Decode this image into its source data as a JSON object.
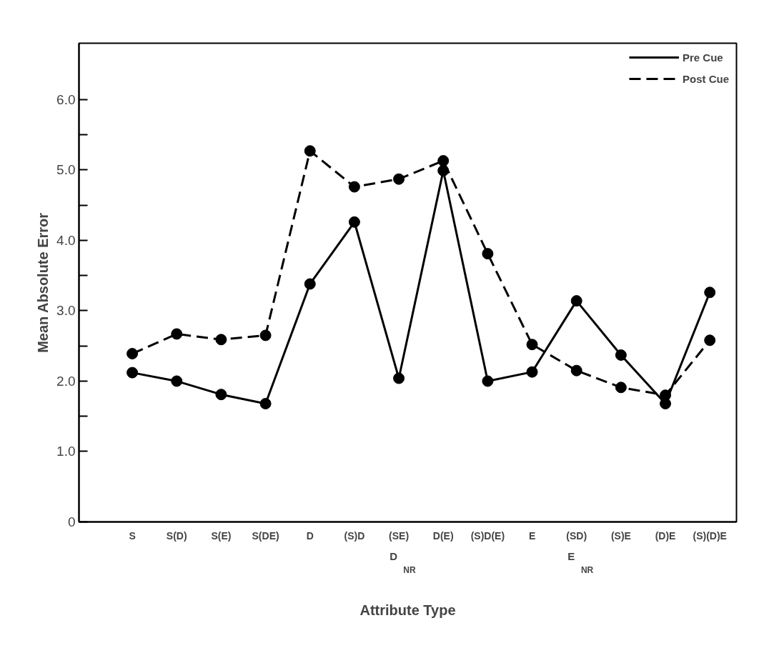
{
  "chart_data": {
    "type": "line",
    "xlabel": "Attribute Type",
    "ylabel": "Mean Absolute Error",
    "categories": [
      "S",
      "S(D)",
      "S(E)",
      "S(DE)",
      "D",
      "(S)D",
      "(SE)",
      "D(E)",
      "(S)D(E)",
      "E",
      "(SD)",
      "(S)E",
      "(D)E",
      "(S)(D)E"
    ],
    "series": [
      {
        "name": "Pre Cue",
        "color": "#000000",
        "line_style": "solid",
        "values": [
          2.12,
          2.0,
          1.81,
          1.68,
          3.38,
          4.26,
          2.04,
          4.99,
          2.0,
          2.13,
          3.14,
          2.37,
          1.68,
          3.26
        ]
      },
      {
        "name": "Post Cue",
        "color": "#000000",
        "line_style": "dashed",
        "values": [
          2.39,
          2.67,
          2.59,
          2.65,
          5.27,
          4.76,
          4.87,
          5.13,
          3.81,
          2.52,
          2.15,
          1.91,
          1.8,
          2.58
        ]
      }
    ],
    "annotations": [
      "D$_{NR}$",
      "E$_{NR}$"
    ],
    "ylim": [
      0,
      6.8
    ],
    "yticks": [
      0,
      {
        "value": 1,
        "label": "1.0"
      },
      {
        "value": 1.5,
        "label": null
      },
      {
        "value": 2,
        "label": "2.0"
      },
      {
        "value": 2.5,
        "label": null
      },
      {
        "value": 3,
        "label": "3.0"
      },
      {
        "value": 3.5,
        "label": null
      },
      {
        "value": 4,
        "label": "4.0"
      },
      {
        "value": 4.5,
        "label": null
      },
      {
        "value": 5,
        "label": "5.0"
      },
      {
        "value": 5.5,
        "label": null
      },
      {
        "value": 6,
        "label": "6.0"
      }
    ],
    "marker": "circle",
    "grid": false,
    "legend": "top right"
  }
}
